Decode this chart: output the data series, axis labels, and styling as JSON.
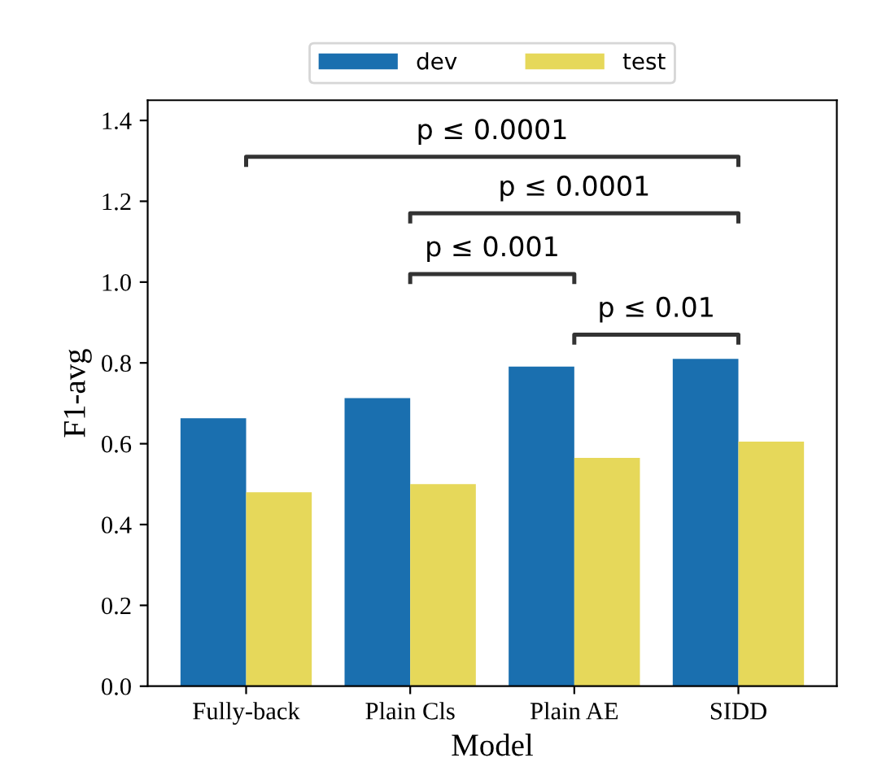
{
  "chart_data": {
    "type": "bar",
    "xlabel": "Model",
    "ylabel": "F1-avg",
    "categories": [
      "Fully-back",
      "Plain Cls",
      "Plain AE",
      "SIDD"
    ],
    "series": [
      {
        "name": "dev",
        "color": "#1a6faf",
        "values": [
          0.663,
          0.713,
          0.791,
          0.81
        ]
      },
      {
        "name": "test",
        "color": "#e6d85a",
        "values": [
          0.48,
          0.5,
          0.565,
          0.605
        ]
      }
    ],
    "ylim": [
      0,
      1.45
    ],
    "yticks": [
      {
        "value": 0,
        "label": "0.0"
      },
      0.2,
      0.4,
      0.6,
      0.8,
      {
        "value": 1,
        "label": "1.0"
      },
      1.2,
      1.4
    ],
    "annotations": [
      "p ≤ 0.0001",
      "p ≤ 0.0001",
      "p ≤ 0.001",
      "p ≤ 0.01"
    ],
    "legend": "top",
    "grid": false
  }
}
